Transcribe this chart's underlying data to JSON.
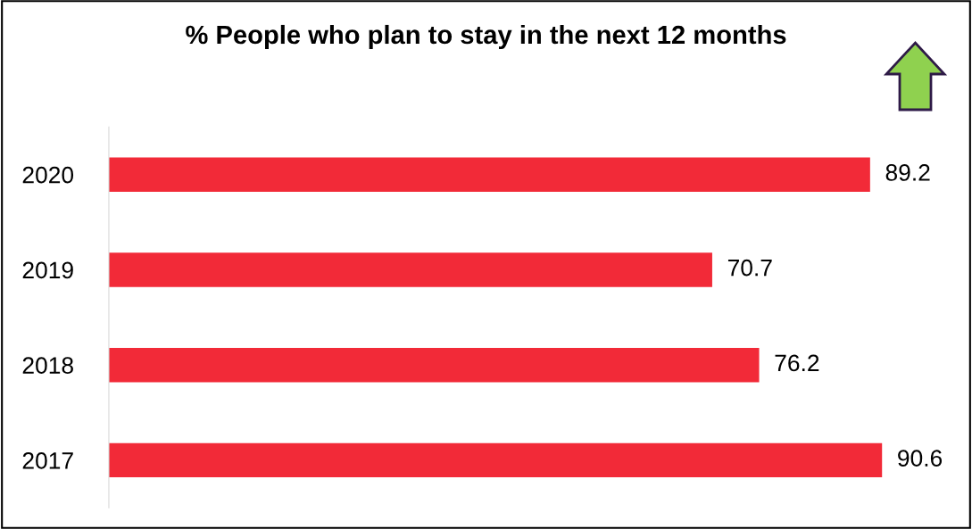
{
  "chart_data": {
    "type": "bar",
    "orientation": "horizontal",
    "title": "% People who plan to stay in the next 12 months",
    "categories": [
      "2020",
      "2019",
      "2018",
      "2017"
    ],
    "values": [
      89.2,
      70.7,
      76.2,
      90.6
    ],
    "color": "#f22a38",
    "tick_labels": "y",
    "data_labels": true,
    "grid": false,
    "legend": false
  }
}
